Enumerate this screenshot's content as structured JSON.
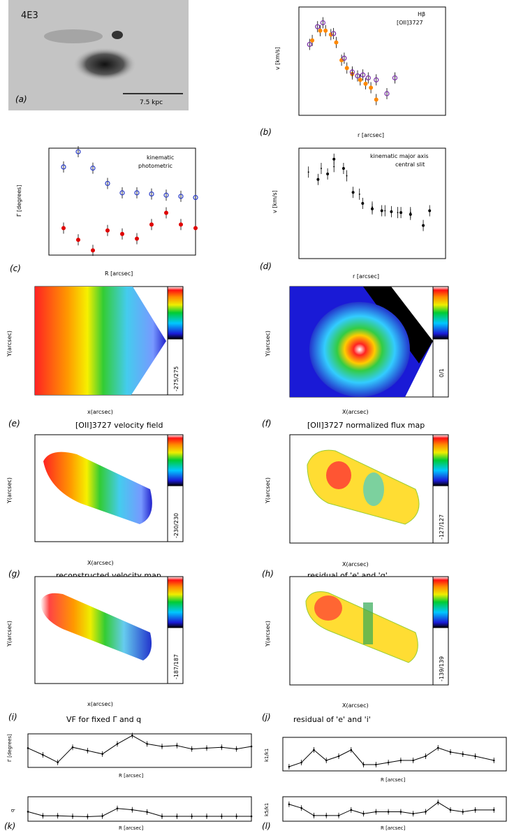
{
  "panels": {
    "a": {
      "letter": "(a)",
      "object": "4E3",
      "scalebar": "7.5 kpc"
    },
    "b": {
      "letter": "(b)",
      "xlabel": "r [arcsec]",
      "ylabel": "v [km/s]",
      "legend": [
        "Hβ",
        "[OII]3727"
      ]
    },
    "c": {
      "letter": "(c)",
      "xlabel": "R [arcsec]",
      "ylabel": "Γ [degrees]",
      "legend": [
        "kinematic",
        "photometric"
      ]
    },
    "d": {
      "letter": "(d)",
      "xlabel": "r [arcsec]",
      "ylabel": "v [km/s]",
      "legend": [
        "kinematic major axis",
        "central slit"
      ]
    },
    "e": {
      "letter": "(e)",
      "title": "[OII]3727 velocity field",
      "xlabel": "x(arcsec)",
      "ylabel": "Y(arcsec)",
      "cbar": "-275/275"
    },
    "f": {
      "letter": "(f)",
      "title": "[OII]3727 normalized flux map",
      "xlabel": "X(arcsec)",
      "ylabel": "Y(arcsec)",
      "cbar": "0/1"
    },
    "g": {
      "letter": "(g)",
      "title": "reconstructed velocity map",
      "xlabel": "X(arcsec)",
      "ylabel": "Y(arcsec)",
      "cbar": "-230/230"
    },
    "h": {
      "letter": "(h)",
      "title": "residual of 'e' and 'g'",
      "xlabel": "X(arcsec)",
      "ylabel": "Y(arcsec)",
      "cbar": "-127/127"
    },
    "i": {
      "letter": "(i)",
      "title": "VF for fixed Γ and q",
      "xlabel": "x(arcsec)",
      "ylabel": "Y(arcsec)",
      "cbar": "-187/187"
    },
    "j": {
      "letter": "(j)",
      "title": "residual of 'e' and 'i'",
      "xlabel": "X(arcsec)",
      "ylabel": "Y(arcsec)",
      "cbar": "-139/139"
    },
    "k": {
      "letter": "(k)",
      "xlabel": "R [arcsec]",
      "ylabel_top": "Γ [degrees]",
      "ylabel_bot": "q"
    },
    "l": {
      "letter": "(l)",
      "xlabel": "R [arcsec]",
      "ylabel_top": "k1/k1",
      "ylabel_bot": "k5/k1"
    }
  },
  "chart_data": [
    {
      "id": "b",
      "type": "scatter",
      "xlim": [
        -2,
        3.5
      ],
      "ylim": [
        -200,
        350
      ],
      "series": [
        {
          "name": "Hβ",
          "color": "#ff8800",
          "x": [
            -1.5,
            -1.2,
            -1.0,
            -0.8,
            -0.6,
            -0.4,
            -0.2,
            0.0,
            0.3,
            0.5,
            0.7,
            0.9
          ],
          "y": [
            180,
            230,
            230,
            210,
            170,
            80,
            40,
            10,
            -20,
            -40,
            -60,
            -120
          ]
        },
        {
          "name": "[OII]3727",
          "color": "#7a2ea8",
          "x": [
            -1.6,
            -1.3,
            -1.1,
            -0.7,
            -0.3,
            0.0,
            0.2,
            0.4,
            0.6,
            0.9,
            1.3,
            1.6
          ],
          "y": [
            160,
            250,
            270,
            215,
            90,
            20,
            0,
            5,
            -10,
            -20,
            -90,
            -10
          ]
        }
      ]
    },
    {
      "id": "c",
      "type": "scatter",
      "xlim": [
        0.3,
        1.3
      ],
      "ylim": [
        97,
        188
      ],
      "series": [
        {
          "name": "kinematic",
          "color": "#e00000",
          "x": [
            0.4,
            0.5,
            0.6,
            0.7,
            0.8,
            0.9,
            1.0,
            1.1,
            1.2,
            1.3
          ],
          "y": [
            120,
            110,
            101,
            118,
            115,
            111,
            123,
            133,
            123,
            120
          ]
        },
        {
          "name": "photometric",
          "color": "#2a3cc8",
          "x": [
            0.4,
            0.5,
            0.6,
            0.7,
            0.8,
            0.9,
            1.0,
            1.1,
            1.2,
            1.3
          ],
          "y": [
            172,
            185,
            171,
            158,
            150,
            150,
            149,
            148,
            147,
            146
          ]
        }
      ]
    },
    {
      "id": "d",
      "type": "scatter",
      "xlim": [
        -2.3,
        2.3
      ],
      "ylim": [
        -300,
        300
      ],
      "series": [
        {
          "name": "kinematic major axis",
          "x": [
            -1.7,
            -1.4,
            -1.2,
            -0.9,
            -0.6,
            -0.3,
            0.0,
            0.3,
            0.6,
            0.9,
            1.2,
            1.6,
            1.8
          ],
          "y": [
            130,
            160,
            240,
            190,
            60,
            0,
            -30,
            -40,
            -45,
            -50,
            -60,
            -120,
            -40
          ]
        },
        {
          "name": "central slit",
          "x": [
            -2.0,
            -1.6,
            -1.2,
            -0.8,
            -0.4,
            0.0,
            0.4,
            0.8,
            1.2
          ],
          "y": [
            170,
            190,
            200,
            150,
            50,
            -20,
            -40,
            -50,
            -50
          ]
        }
      ]
    },
    {
      "id": "k_top",
      "type": "line",
      "xlim": [
        0.4,
        1.9
      ],
      "ylim": [
        95,
        135
      ],
      "x": [
        0.4,
        0.5,
        0.6,
        0.7,
        0.8,
        0.9,
        1.0,
        1.1,
        1.2,
        1.3,
        1.4,
        1.5,
        1.6,
        1.7,
        1.8,
        1.9
      ],
      "y": [
        118,
        110,
        101,
        119,
        115,
        111,
        123,
        133,
        123,
        120,
        121,
        117,
        118,
        119,
        117,
        120
      ]
    },
    {
      "id": "k_bot",
      "type": "line",
      "xlim": [
        0.4,
        1.9
      ],
      "ylim": [
        0.0,
        0.9
      ],
      "x": [
        0.4,
        0.5,
        0.6,
        0.7,
        0.8,
        0.9,
        1.0,
        1.1,
        1.2,
        1.3,
        1.4,
        1.5,
        1.6,
        1.7,
        1.8,
        1.9
      ],
      "y": [
        0.35,
        0.2,
        0.2,
        0.18,
        0.17,
        0.19,
        0.47,
        0.42,
        0.34,
        0.18,
        0.18,
        0.18,
        0.18,
        0.18,
        0.18,
        0.18
      ]
    },
    {
      "id": "l_top",
      "type": "line",
      "xlim": [
        0.3,
        2.1
      ],
      "ylim": [
        0.0,
        0.16
      ],
      "x": [
        0.35,
        0.45,
        0.55,
        0.65,
        0.75,
        0.85,
        0.95,
        1.05,
        1.15,
        1.25,
        1.35,
        1.45,
        1.55,
        1.65,
        1.75,
        1.85,
        2.0
      ],
      "y": [
        0.02,
        0.04,
        0.1,
        0.05,
        0.07,
        0.1,
        0.03,
        0.03,
        0.04,
        0.05,
        0.05,
        0.07,
        0.11,
        0.09,
        0.08,
        0.07,
        0.05
      ]
    },
    {
      "id": "l_bot",
      "type": "line",
      "xlim": [
        0.3,
        2.1
      ],
      "ylim": [
        0.0,
        0.13
      ],
      "x": [
        0.35,
        0.45,
        0.55,
        0.65,
        0.75,
        0.85,
        0.95,
        1.05,
        1.15,
        1.25,
        1.35,
        1.45,
        1.55,
        1.65,
        1.75,
        1.85,
        2.0
      ],
      "y": [
        0.09,
        0.07,
        0.03,
        0.03,
        0.03,
        0.06,
        0.04,
        0.05,
        0.05,
        0.05,
        0.04,
        0.05,
        0.1,
        0.06,
        0.05,
        0.06,
        0.06
      ]
    }
  ]
}
